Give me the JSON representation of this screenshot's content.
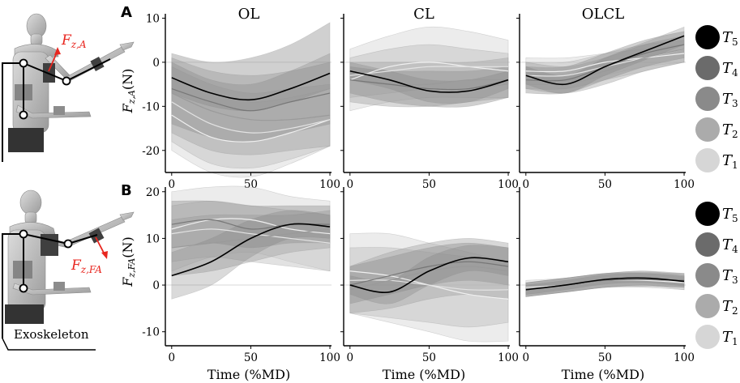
{
  "figure": {
    "panel_letters": [
      "A",
      "B"
    ],
    "column_titles": [
      "OL",
      "CL",
      "OLCL"
    ],
    "xlabel": "Time (%MD)",
    "exo_label": "Exoskeleton",
    "force_label_A": {
      "base": "F",
      "sub": "z,A"
    },
    "force_label_B": {
      "base": "F",
      "sub": "z,FA"
    },
    "ylabel_A": {
      "base": "F",
      "sub": "z,A",
      "unit": "(N)"
    },
    "ylabel_B": {
      "base": "F",
      "sub": "z,FA",
      "unit": "(N)"
    },
    "legend": [
      {
        "base": "T",
        "sub": "5",
        "color": "#000000"
      },
      {
        "base": "T",
        "sub": "4",
        "color": "#6b6b6b"
      },
      {
        "base": "T",
        "sub": "3",
        "color": "#8a8a8a"
      },
      {
        "base": "T",
        "sub": "2",
        "color": "#ababab"
      },
      {
        "base": "T",
        "sub": "1",
        "color": "#d6d6d6"
      }
    ],
    "colors": {
      "force_arrow": "#e8261f",
      "zero_line": "#d9d9d9"
    }
  },
  "chart_data": [
    {
      "type": "line",
      "row": "A",
      "col": "OL",
      "title": "OL",
      "xlabel": "Time (%MD)",
      "ylabel": "F_z,A (N)",
      "xlim": [
        -4,
        101
      ],
      "ylim": [
        -25,
        11
      ],
      "xticks": [
        0,
        50,
        100
      ],
      "xtick_labels": [
        "0",
        "50",
        "100"
      ],
      "yticks": [
        10,
        0,
        -10,
        -20
      ],
      "ytick_labels": [
        "10",
        "0",
        "-10",
        "-20"
      ],
      "show_y_ticklabels": true,
      "x": [
        0,
        25,
        50,
        75,
        100
      ],
      "series": [
        {
          "name": "T1",
          "mean": [
            -12,
            -17,
            -18,
            -16,
            -13
          ],
          "lower": [
            -20,
            -25,
            -26,
            -23,
            -19
          ],
          "upper": [
            -4,
            -7,
            -9,
            -8,
            -6
          ]
        },
        {
          "name": "T2",
          "mean": [
            -9,
            -14,
            -16,
            -15,
            -13
          ],
          "lower": [
            -18,
            -23,
            -24,
            -22,
            -19
          ],
          "upper": [
            -1,
            -5,
            -7,
            -6,
            -5
          ]
        },
        {
          "name": "T3",
          "mean": [
            -7,
            -11,
            -13,
            -13,
            -12
          ],
          "lower": [
            -16,
            -20,
            -21,
            -20,
            -19
          ],
          "upper": [
            1,
            -2,
            -3,
            -2,
            0
          ]
        },
        {
          "name": "T4",
          "mean": [
            -6,
            -9,
            -11,
            -9,
            -7
          ],
          "lower": [
            -14,
            -17,
            -18,
            -16,
            -14
          ],
          "upper": [
            2,
            0,
            1,
            4,
            9
          ]
        },
        {
          "name": "T5",
          "mean": [
            -3.5,
            -7,
            -8.5,
            -6,
            -2.5
          ],
          "lower": [
            -7,
            -10,
            -11,
            -9,
            -6
          ],
          "upper": [
            0,
            -4,
            -5,
            -2,
            2
          ]
        }
      ]
    },
    {
      "type": "line",
      "row": "A",
      "col": "CL",
      "title": "CL",
      "xlabel": "Time (%MD)",
      "ylabel": "F_z,A (N)",
      "xlim": [
        -4,
        101
      ],
      "ylim": [
        -25,
        11
      ],
      "xticks": [
        0,
        50,
        100
      ],
      "xtick_labels": [
        "0",
        "50",
        "100"
      ],
      "yticks": [
        10,
        0,
        -10,
        -20
      ],
      "ytick_labels": [
        "10",
        "0",
        "-10",
        "-20"
      ],
      "show_y_ticklabels": false,
      "x": [
        0,
        25,
        50,
        75,
        100
      ],
      "series": [
        {
          "name": "T1",
          "mean": [
            -4,
            -1,
            0,
            -1,
            -2
          ],
          "lower": [
            -11,
            -9,
            -8,
            -8,
            -8
          ],
          "upper": [
            3,
            6,
            8,
            7,
            5
          ]
        },
        {
          "name": "T2",
          "mean": [
            -3,
            -2,
            -1,
            -1,
            -1
          ],
          "lower": [
            -8,
            -7,
            -6,
            -6,
            -5
          ],
          "upper": [
            1,
            3,
            4,
            3,
            2
          ]
        },
        {
          "name": "T3",
          "mean": [
            -4,
            -5,
            -5,
            -4,
            -4
          ],
          "lower": [
            -9,
            -10,
            -10,
            -9,
            -8
          ],
          "upper": [
            0,
            0,
            0,
            0,
            1
          ]
        },
        {
          "name": "T4",
          "mean": [
            -4,
            -5,
            -6,
            -6,
            -4
          ],
          "lower": [
            -7,
            -9,
            -10,
            -10,
            -8
          ],
          "upper": [
            -1,
            -2,
            -2,
            -2,
            -1
          ]
        },
        {
          "name": "T5",
          "mean": [
            -2,
            -4,
            -6.5,
            -6.5,
            -4
          ],
          "lower": [
            -4,
            -6,
            -9,
            -9,
            -6
          ],
          "upper": [
            0,
            -2,
            -4,
            -4,
            -2
          ]
        }
      ]
    },
    {
      "type": "line",
      "row": "A",
      "col": "OLCL",
      "title": "OLCL",
      "xlabel": "Time (%MD)",
      "ylabel": "F_z,A (N)",
      "xlim": [
        -4,
        101
      ],
      "ylim": [
        -25,
        11
      ],
      "xticks": [
        0,
        50,
        100
      ],
      "xtick_labels": [
        "0",
        "50",
        "100"
      ],
      "yticks": [
        10,
        0,
        -10,
        -20
      ],
      "ytick_labels": [
        "10",
        "0",
        "-10",
        "-20"
      ],
      "show_y_ticklabels": false,
      "x": [
        0,
        25,
        50,
        75,
        100
      ],
      "series": [
        {
          "name": "T1",
          "mean": [
            -2,
            -2,
            0,
            1,
            2
          ],
          "lower": [
            -5,
            -5,
            -3,
            -1,
            0
          ],
          "upper": [
            1,
            1,
            2,
            3,
            4
          ]
        },
        {
          "name": "T2",
          "mean": [
            -3,
            -3,
            -1,
            1,
            3
          ],
          "lower": [
            -6,
            -6,
            -4,
            -2,
            0
          ],
          "upper": [
            0,
            0,
            2,
            4,
            5
          ]
        },
        {
          "name": "T3",
          "mean": [
            -3,
            -4,
            -2,
            1,
            3
          ],
          "lower": [
            -6,
            -7,
            -5,
            -2,
            0
          ],
          "upper": [
            0,
            -1,
            1,
            4,
            6
          ]
        },
        {
          "name": "T4",
          "mean": [
            -4,
            -4,
            -1,
            2,
            4
          ],
          "lower": [
            -7,
            -7,
            -4,
            -1,
            1
          ],
          "upper": [
            -1,
            -1,
            2,
            5,
            7
          ]
        },
        {
          "name": "T5",
          "mean": [
            -3,
            -5,
            -1,
            2.5,
            6
          ],
          "lower": [
            -5,
            -7,
            -3,
            0.5,
            4
          ],
          "upper": [
            -1,
            -3,
            1,
            4.5,
            8
          ]
        }
      ]
    },
    {
      "type": "line",
      "row": "B",
      "col": "OL",
      "title": "",
      "xlabel": "Time (%MD)",
      "ylabel": "F_z,FA (N)",
      "xlim": [
        -4,
        101
      ],
      "ylim": [
        -13,
        21
      ],
      "xticks": [
        0,
        50,
        100
      ],
      "xtick_labels": [
        "0",
        "50",
        "100"
      ],
      "yticks": [
        20,
        10,
        0,
        -10
      ],
      "ytick_labels": [
        "20",
        "10",
        "0",
        "-10"
      ],
      "show_y_ticklabels": true,
      "x": [
        0,
        25,
        50,
        75,
        100
      ],
      "series": [
        {
          "name": "T1",
          "mean": [
            12,
            14,
            14,
            12,
            11
          ],
          "lower": [
            3,
            6,
            7,
            5,
            3
          ],
          "upper": [
            20,
            21,
            21,
            19,
            18
          ]
        },
        {
          "name": "T2",
          "mean": [
            11,
            12,
            11,
            10,
            9
          ],
          "lower": [
            5,
            6,
            5,
            4,
            3
          ],
          "upper": [
            17,
            18,
            17,
            16,
            15
          ]
        },
        {
          "name": "T3",
          "mean": [
            8,
            9,
            10,
            11,
            12
          ],
          "lower": [
            2,
            3,
            5,
            7,
            8
          ],
          "upper": [
            14,
            15,
            15,
            15,
            16
          ]
        },
        {
          "name": "T4",
          "mean": [
            13,
            14,
            12,
            13,
            13
          ],
          "lower": [
            8,
            9,
            8,
            9,
            9
          ],
          "upper": [
            18,
            18,
            17,
            17,
            17
          ]
        },
        {
          "name": "T5",
          "mean": [
            2,
            5,
            10,
            13,
            12.5
          ],
          "lower": [
            -3,
            0,
            6,
            10,
            10
          ],
          "upper": [
            7,
            10,
            14,
            16,
            15
          ]
        }
      ]
    },
    {
      "type": "line",
      "row": "B",
      "col": "CL",
      "title": "",
      "xlabel": "Time (%MD)",
      "ylabel": "F_z,FA (N)",
      "xlim": [
        -4,
        101
      ],
      "ylim": [
        -13,
        21
      ],
      "xticks": [
        0,
        50,
        100
      ],
      "xtick_labels": [
        "0",
        "50",
        "100"
      ],
      "yticks": [
        20,
        10,
        0,
        -10
      ],
      "ytick_labels": [
        "20",
        "10",
        "0",
        "-10"
      ],
      "show_y_ticklabels": false,
      "x": [
        0,
        25,
        50,
        75,
        100
      ],
      "series": [
        {
          "name": "T1",
          "mean": [
            3,
            2,
            0,
            -2,
            -3
          ],
          "lower": [
            -6,
            -8,
            -10,
            -12,
            -12
          ],
          "upper": [
            11,
            11,
            9,
            7,
            5
          ]
        },
        {
          "name": "T2",
          "mean": [
            1,
            1,
            0,
            -1,
            -1
          ],
          "lower": [
            -6,
            -7,
            -8,
            -9,
            -8
          ],
          "upper": [
            8,
            8,
            7,
            6,
            5
          ]
        },
        {
          "name": "T3",
          "mean": [
            -1,
            1,
            3,
            4,
            3
          ],
          "lower": [
            -6,
            -5,
            -3,
            -2,
            -3
          ],
          "upper": [
            4,
            7,
            9,
            10,
            9
          ]
        },
        {
          "name": "T4",
          "mean": [
            0,
            2,
            4,
            5,
            4
          ],
          "lower": [
            -4,
            -2,
            0,
            1,
            0
          ],
          "upper": [
            4,
            6,
            8,
            9,
            8
          ]
        },
        {
          "name": "T5",
          "mean": [
            0,
            -1.5,
            3,
            5.8,
            5
          ],
          "lower": [
            -2,
            -4,
            0,
            3,
            2
          ],
          "upper": [
            2,
            1,
            6,
            8.5,
            8
          ]
        }
      ]
    },
    {
      "type": "line",
      "row": "B",
      "col": "OLCL",
      "title": "",
      "xlabel": "Time (%MD)",
      "ylabel": "F_z,FA (N)",
      "xlim": [
        -4,
        101
      ],
      "ylim": [
        -13,
        21
      ],
      "xticks": [
        0,
        50,
        100
      ],
      "xtick_labels": [
        "0",
        "50",
        "100"
      ],
      "yticks": [
        20,
        10,
        0,
        -10
      ],
      "ytick_labels": [
        "20",
        "10",
        "0",
        "-10"
      ],
      "show_y_ticklabels": false,
      "x": [
        0,
        25,
        50,
        75,
        100
      ],
      "series": [
        {
          "name": "T1",
          "mean": [
            -0.5,
            0,
            1,
            1,
            0.5
          ],
          "lower": [
            -2,
            -1.5,
            -0.5,
            -0.5,
            -1
          ],
          "upper": [
            1,
            1.5,
            2.5,
            2.5,
            2
          ]
        },
        {
          "name": "T2",
          "mean": [
            -1,
            0,
            1,
            1.5,
            0.5
          ],
          "lower": [
            -2.5,
            -1.5,
            -0.5,
            0,
            -1
          ],
          "upper": [
            0.5,
            1.5,
            2.5,
            3,
            2
          ]
        },
        {
          "name": "T3",
          "mean": [
            -1,
            0,
            1,
            1.5,
            1
          ],
          "lower": [
            -2.5,
            -1.5,
            -0.5,
            0,
            -0.5
          ],
          "upper": [
            0.5,
            1.5,
            2.5,
            3,
            2.5
          ]
        },
        {
          "name": "T4",
          "mean": [
            -1,
            0,
            1,
            1.2,
            1
          ],
          "lower": [
            -2.5,
            -1.5,
            -0.5,
            -0.3,
            -0.5
          ],
          "upper": [
            0.5,
            1.5,
            2.5,
            2.7,
            2.5
          ]
        },
        {
          "name": "T5",
          "mean": [
            -1,
            0,
            1.2,
            1.5,
            0.8
          ],
          "lower": [
            -2,
            -1,
            0.2,
            0.5,
            -0.2
          ],
          "upper": [
            0,
            1,
            2.2,
            2.5,
            1.8
          ]
        }
      ]
    }
  ]
}
